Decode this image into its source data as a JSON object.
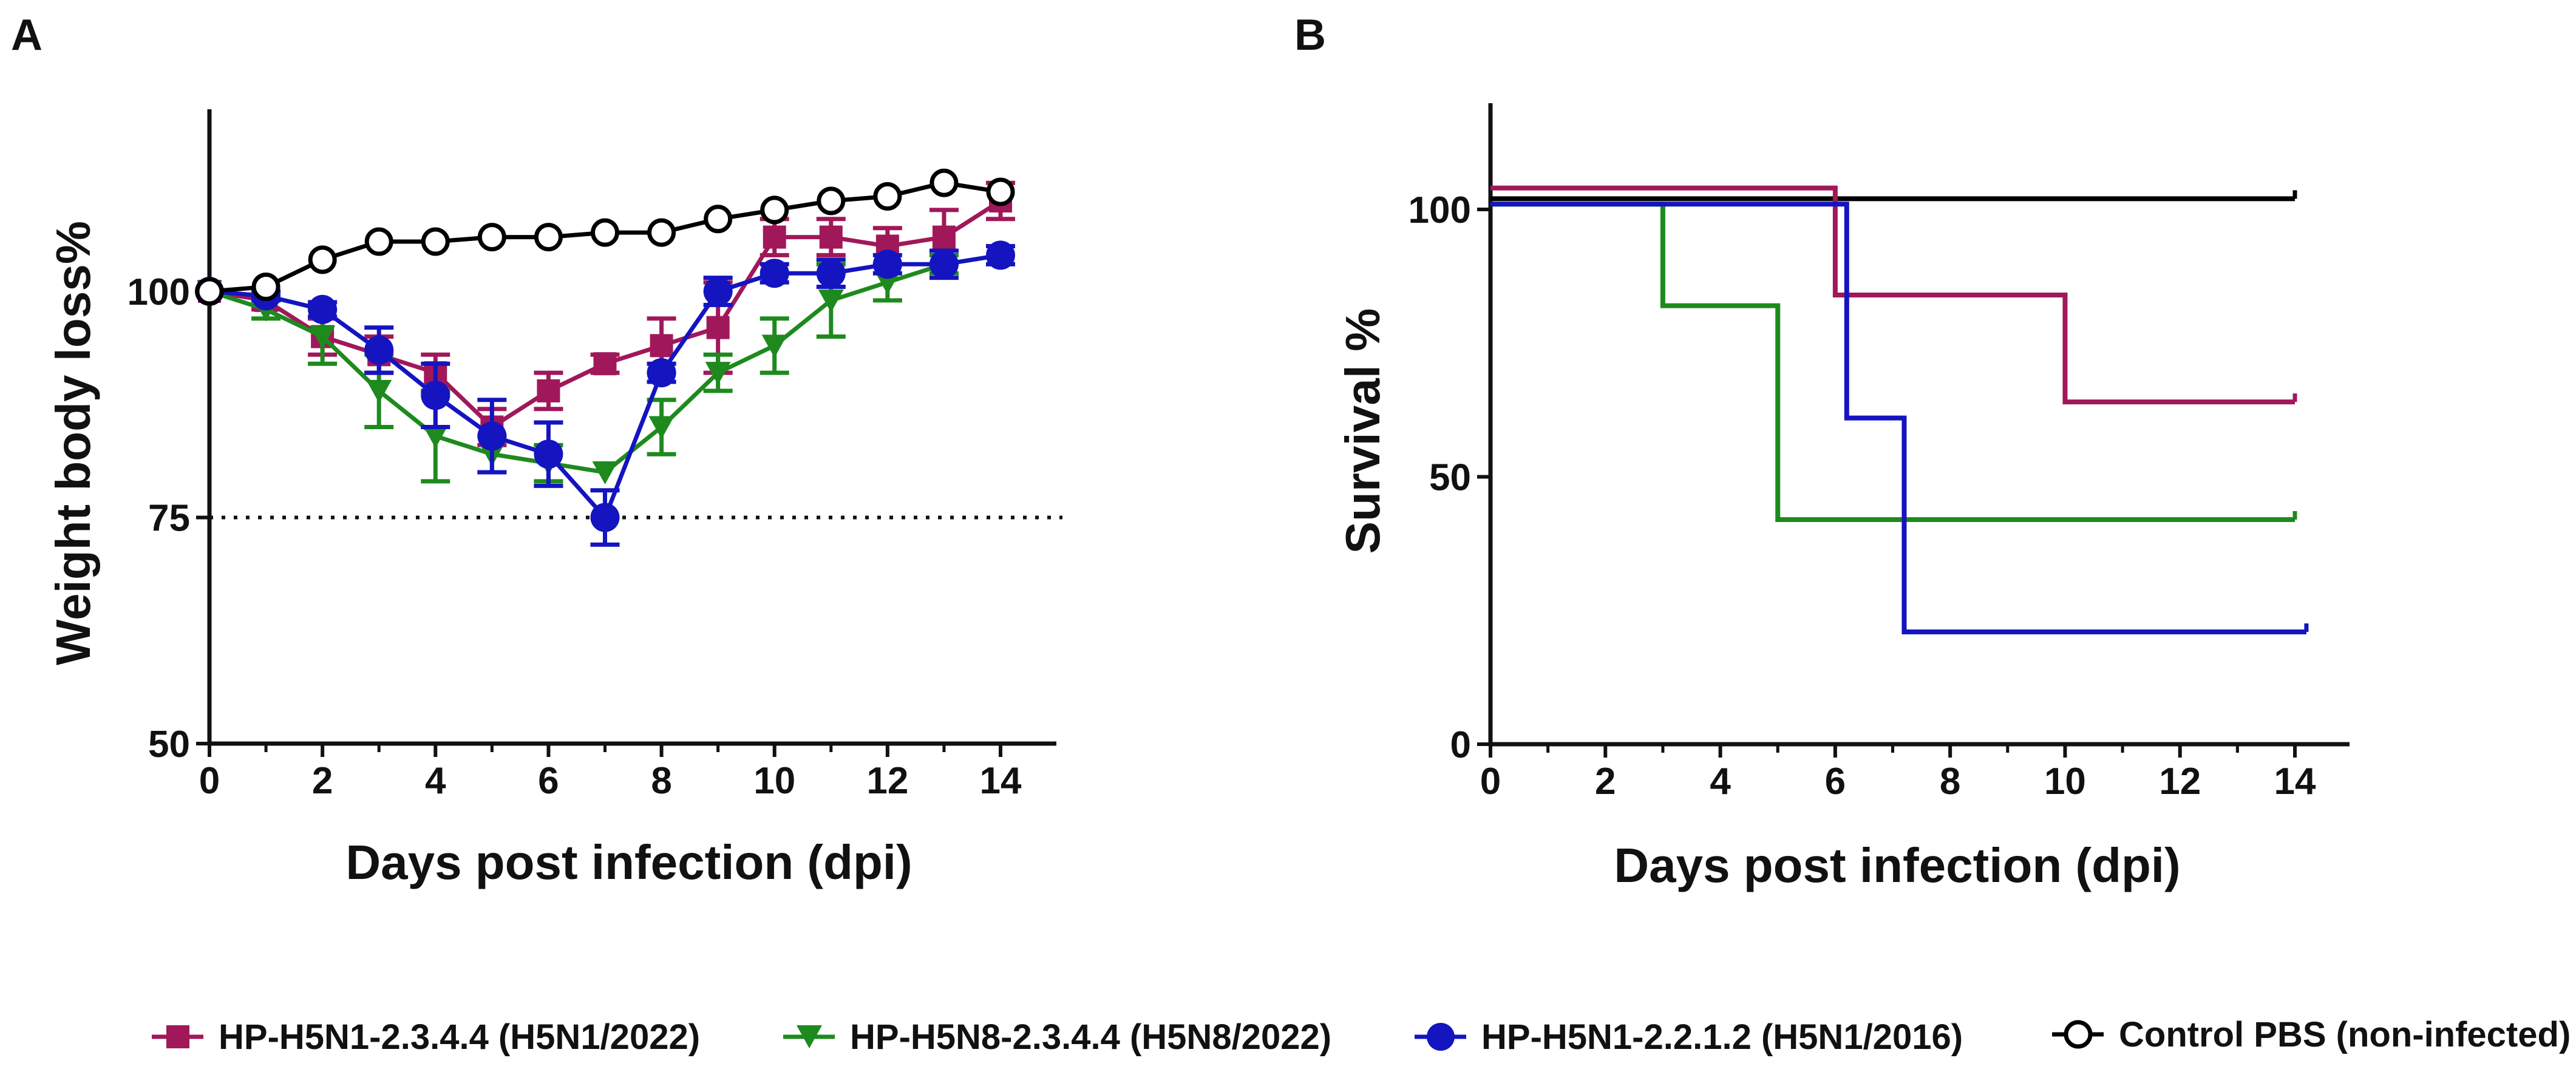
{
  "chart_data": [
    {
      "panel": "A",
      "type": "line",
      "ylabel": "Weight body loss%",
      "xlabel": "Days post infection (dpi)",
      "xlim": [
        0,
        14.5
      ],
      "ylim": [
        50,
        120
      ],
      "xticks": [
        "0",
        "2",
        "4",
        "6",
        "8",
        "10",
        "12",
        "14"
      ],
      "yticks": [
        "50",
        "75",
        "100"
      ],
      "reference_line": {
        "y": 75,
        "style": "dotted"
      },
      "x": [
        0,
        1,
        2,
        3,
        4,
        5,
        6,
        7,
        8,
        9,
        10,
        11,
        12,
        13,
        14
      ],
      "series": [
        {
          "name": "HP-H5N1-2.3.4.4 (H5N1/2022)",
          "color": "#a0185a",
          "marker": "square",
          "values": [
            100,
            99,
            95,
            93,
            91,
            85,
            89,
            92,
            94,
            96,
            106,
            106,
            105,
            106,
            110
          ],
          "errors": [
            0,
            1,
            2,
            2,
            2,
            2,
            2,
            1,
            3,
            5,
            2,
            2,
            2,
            3,
            2
          ]
        },
        {
          "name": "HP-H5N8-2.3.4.4 (H5N8/2022)",
          "color": "#1e8a1e",
          "marker": "triangle-down",
          "values": [
            100,
            98,
            95,
            89,
            84,
            82,
            81,
            80,
            85,
            91,
            94,
            99,
            101,
            103,
            104
          ],
          "errors": [
            0,
            1,
            3,
            4,
            5,
            2,
            2,
            0,
            3,
            2,
            3,
            4,
            2,
            1,
            1
          ]
        },
        {
          "name": "HP-H5N1-2.2.1.2 (H5N1/2016)",
          "color": "#1414c0",
          "marker": "circle",
          "values": [
            100,
            99.5,
            98,
            93.5,
            88.5,
            84,
            82,
            75,
            91,
            100,
            102,
            102,
            103,
            103,
            104
          ],
          "errors": [
            0,
            0.5,
            0.8,
            2.5,
            3.5,
            4,
            3.5,
            3,
            1,
            1.5,
            1,
            1.5,
            1,
            1.5,
            1
          ]
        },
        {
          "name": "Control PBS (non-infected)",
          "color": "#000000",
          "marker": "open-circle",
          "values": [
            100,
            100.5,
            103.5,
            105.5,
            105.5,
            106,
            106,
            106.5,
            106.5,
            108,
            109,
            110,
            110.5,
            112,
            111
          ],
          "errors": [
            0,
            0,
            0,
            0,
            0,
            0,
            0,
            0,
            0,
            0,
            0,
            0,
            0,
            0,
            0
          ]
        }
      ]
    },
    {
      "panel": "B",
      "type": "line",
      "subtype": "step-survival",
      "ylabel": "Survival %",
      "xlabel": "Days post infection (dpi)",
      "xlim": [
        0,
        14.8
      ],
      "ylim": [
        0,
        120
      ],
      "xticks": [
        "0",
        "2",
        "4",
        "6",
        "8",
        "10",
        "12",
        "14"
      ],
      "yticks": [
        "0",
        "50",
        "100"
      ],
      "series": [
        {
          "name": "Control PBS (non-infected)",
          "color": "#000000",
          "x": [
            0,
            14
          ],
          "values": [
            102,
            102
          ]
        },
        {
          "name": "HP-H5N1-2.3.4.4 (H5N1/2022)",
          "color": "#a0185a",
          "x": [
            0,
            6,
            10,
            14
          ],
          "values": [
            104,
            84,
            64,
            64
          ]
        },
        {
          "name": "HP-H5N8-2.3.4.4 (H5N8/2022)",
          "color": "#1e8a1e",
          "x": [
            0,
            3,
            5,
            14
          ],
          "values": [
            101,
            82,
            42,
            42
          ]
        },
        {
          "name": "HP-H5N1-2.2.1.2 (H5N1/2016)",
          "color": "#1414c0",
          "x": [
            0,
            6.2,
            7.2,
            14.2
          ],
          "values": [
            101,
            61,
            21,
            21
          ]
        }
      ]
    }
  ],
  "legend": [
    {
      "label": "HP-H5N1-2.3.4.4 (H5N1/2022)",
      "color": "#a0185a",
      "marker": "square"
    },
    {
      "label": "HP-H5N8-2.3.4.4 (H5N8/2022)",
      "color": "#1e8a1e",
      "marker": "triangle-down"
    },
    {
      "label": "HP-H5N1-2.2.1.2 (H5N1/2016)",
      "color": "#1414c0",
      "marker": "circle"
    },
    {
      "label": "Control PBS (non-infected)",
      "color": "#000000",
      "marker": "open-circle"
    }
  ]
}
